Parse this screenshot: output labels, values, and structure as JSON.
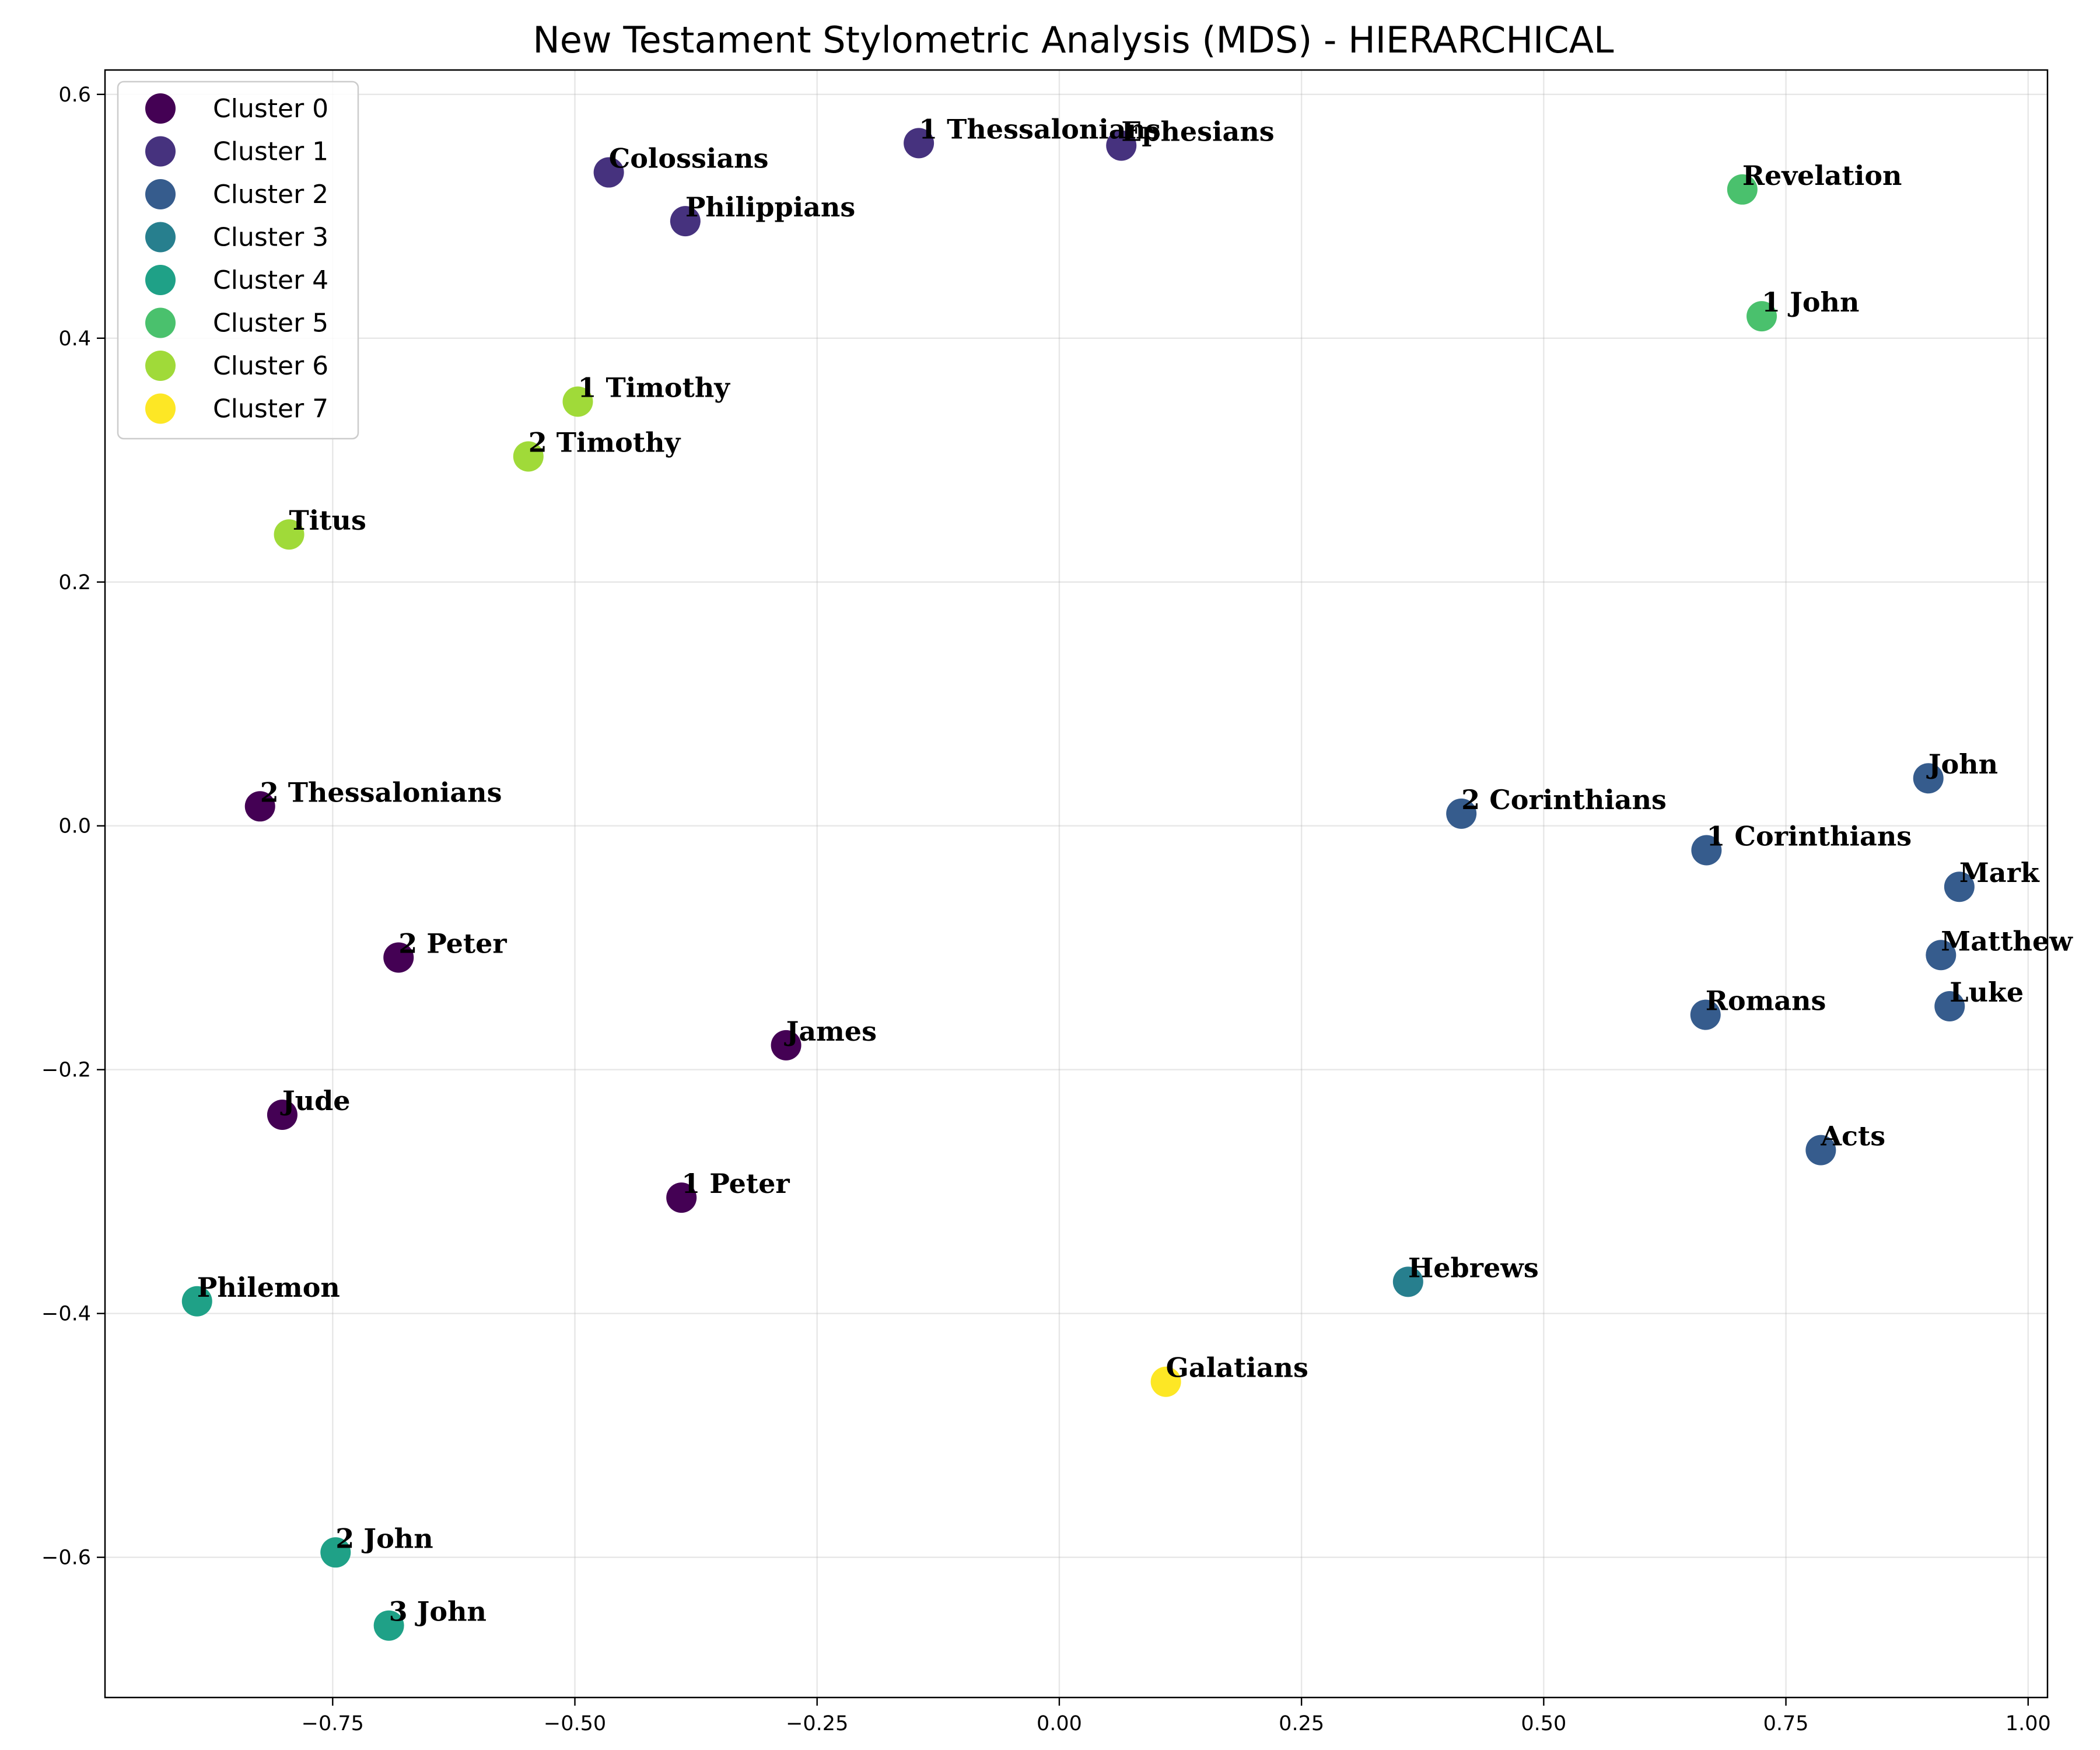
{
  "chart_data": {
    "type": "scatter",
    "title": "New Testament Stylometric Analysis (MDS) - HIERARCHICAL",
    "xlabel": "",
    "ylabel": "",
    "xlim": [
      -0.985,
      1.02
    ],
    "ylim": [
      -0.715,
      0.62
    ],
    "xticks": [
      -0.75,
      -0.5,
      -0.25,
      0.0,
      0.25,
      0.5,
      0.75,
      1.0
    ],
    "xtick_labels": [
      "−0.75",
      "−0.50",
      "−0.25",
      "0.00",
      "0.25",
      "0.50",
      "0.75",
      "1.00"
    ],
    "yticks": [
      -0.6,
      -0.4,
      -0.2,
      0.0,
      0.2,
      0.4,
      0.6
    ],
    "ytick_labels": [
      "−0.6",
      "−0.4",
      "−0.2",
      "0.0",
      "0.2",
      "0.4",
      "0.6"
    ],
    "grid": true,
    "legend_position": "top-left",
    "cluster_colors": [
      "#440154",
      "#46327e",
      "#365c8d",
      "#277f8e",
      "#1fa187",
      "#4ac16d",
      "#a0da39",
      "#fde725"
    ],
    "series": [
      {
        "name": "Cluster 0",
        "points": [
          {
            "label": "2 Thessalonians",
            "x": -0.825,
            "y": 0.016
          },
          {
            "label": "2 Peter",
            "x": -0.682,
            "y": -0.108
          },
          {
            "label": "James",
            "x": -0.282,
            "y": -0.18
          },
          {
            "label": "Jude",
            "x": -0.802,
            "y": -0.237
          },
          {
            "label": "1 Peter",
            "x": -0.39,
            "y": -0.305
          }
        ]
      },
      {
        "name": "Cluster 1",
        "points": [
          {
            "label": "Colossians",
            "x": -0.465,
            "y": 0.536
          },
          {
            "label": "Philippians",
            "x": -0.386,
            "y": 0.496
          },
          {
            "label": "1 Thessalonians",
            "x": -0.145,
            "y": 0.56
          },
          {
            "label": "Ephesians",
            "x": 0.064,
            "y": 0.558
          }
        ]
      },
      {
        "name": "Cluster 2",
        "points": [
          {
            "label": "John",
            "x": 0.897,
            "y": 0.039
          },
          {
            "label": "2 Corinthians",
            "x": 0.415,
            "y": 0.01
          },
          {
            "label": "1 Corinthians",
            "x": 0.668,
            "y": -0.02
          },
          {
            "label": "Mark",
            "x": 0.929,
            "y": -0.05
          },
          {
            "label": "Matthew",
            "x": 0.91,
            "y": -0.106
          },
          {
            "label": "Romans",
            "x": 0.667,
            "y": -0.155
          },
          {
            "label": "Luke",
            "x": 0.919,
            "y": -0.148
          },
          {
            "label": "Acts",
            "x": 0.786,
            "y": -0.266
          }
        ]
      },
      {
        "name": "Cluster 3",
        "points": [
          {
            "label": "Hebrews",
            "x": 0.36,
            "y": -0.374
          }
        ]
      },
      {
        "name": "Cluster 4",
        "points": [
          {
            "label": "Philemon",
            "x": -0.89,
            "y": -0.39
          },
          {
            "label": "2 John",
            "x": -0.747,
            "y": -0.596
          },
          {
            "label": "3 John",
            "x": -0.692,
            "y": -0.656
          }
        ]
      },
      {
        "name": "Cluster 5",
        "points": [
          {
            "label": "Revelation",
            "x": 0.705,
            "y": 0.522
          },
          {
            "label": "1 John",
            "x": 0.725,
            "y": 0.418
          }
        ]
      },
      {
        "name": "Cluster 6",
        "points": [
          {
            "label": "1 Timothy",
            "x": -0.497,
            "y": 0.348
          },
          {
            "label": "2 Timothy",
            "x": -0.548,
            "y": 0.303
          },
          {
            "label": "Titus",
            "x": -0.795,
            "y": 0.239
          }
        ]
      },
      {
        "name": "Cluster 7",
        "points": [
          {
            "label": "Galatians",
            "x": 0.11,
            "y": -0.456
          }
        ]
      }
    ]
  }
}
